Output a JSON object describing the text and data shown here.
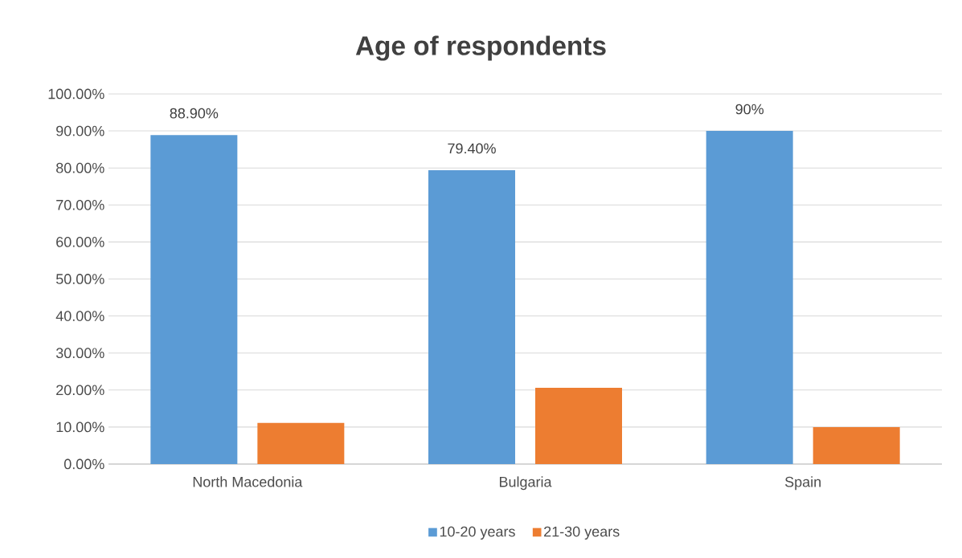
{
  "chart_data": {
    "type": "bar",
    "title": "Age of respondents",
    "categories": [
      "North Macedonia",
      "Bulgaria",
      "Spain"
    ],
    "series": [
      {
        "name": "10-20 years",
        "color": "#5b9bd5",
        "values": [
          88.9,
          79.4,
          90
        ],
        "value_labels": [
          "88.90%",
          "79.40%",
          "90%"
        ]
      },
      {
        "name": "21-30 years",
        "color": "#ed7d31",
        "values": [
          11.1,
          20.6,
          10
        ]
      }
    ],
    "ylim": [
      0,
      100
    ],
    "yticks": [
      {
        "value": 0,
        "label": "0.00%"
      },
      {
        "value": 10,
        "label": "10.00%"
      },
      {
        "value": 20,
        "label": "20.00%"
      },
      {
        "value": 30,
        "label": "30.00%"
      },
      {
        "value": 40,
        "label": "40.00%"
      },
      {
        "value": 50,
        "label": "50.00%"
      },
      {
        "value": 60,
        "label": "60.00%"
      },
      {
        "value": 70,
        "label": "70.00%"
      },
      {
        "value": 80,
        "label": "80.00%"
      },
      {
        "value": 90,
        "label": "90.00%"
      },
      {
        "value": 100,
        "label": "100.00%"
      }
    ],
    "grid": "y",
    "legend": "bottom"
  }
}
